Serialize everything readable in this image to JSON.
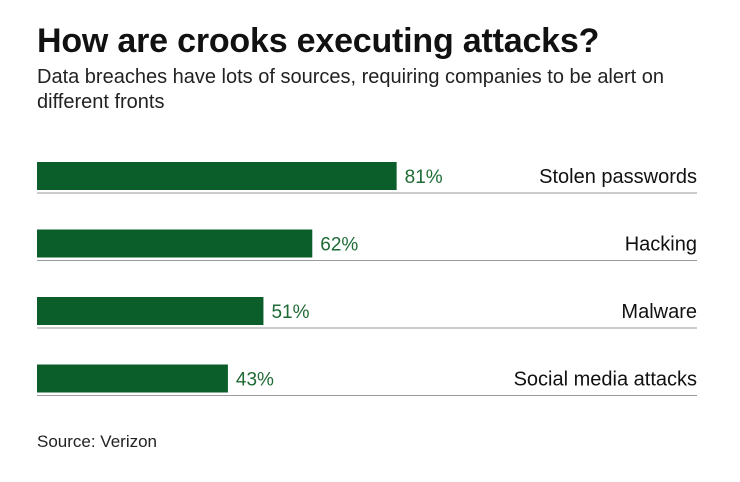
{
  "chart_data": {
    "type": "bar",
    "orientation": "horizontal",
    "title": "How are crooks executing attacks?",
    "subtitle": "Data breaches have lots of sources, requiring companies to be alert on different fronts",
    "categories": [
      "Stolen passwords",
      "Hacking",
      "Malware",
      "Social media attacks"
    ],
    "values": [
      81,
      62,
      51,
      43
    ],
    "value_labels": [
      "81%",
      "62%",
      "51%",
      "43%"
    ],
    "unit": "%",
    "xlim": [
      0,
      100
    ],
    "grid": false,
    "legend": "none",
    "source": "Source: Verizon"
  },
  "colors": {
    "bar": "#0b5e2a",
    "value_label": "#1f6b36",
    "baseline": "#9a9a9a",
    "text": "#111111"
  }
}
